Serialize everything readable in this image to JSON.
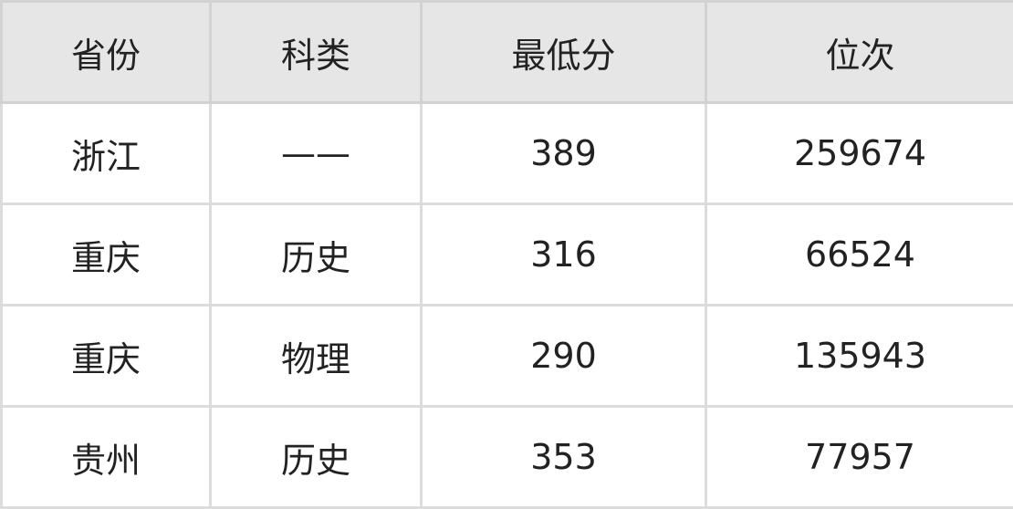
{
  "table": {
    "headers": [
      "省份",
      "科类",
      "最低分",
      "位次"
    ],
    "rows": [
      [
        "浙江",
        "——",
        "389",
        "259674"
      ],
      [
        "重庆",
        "历史",
        "316",
        "66524"
      ],
      [
        "重庆",
        "物理",
        "290",
        "135943"
      ],
      [
        "贵州",
        "历史",
        "353",
        "77957"
      ]
    ]
  }
}
